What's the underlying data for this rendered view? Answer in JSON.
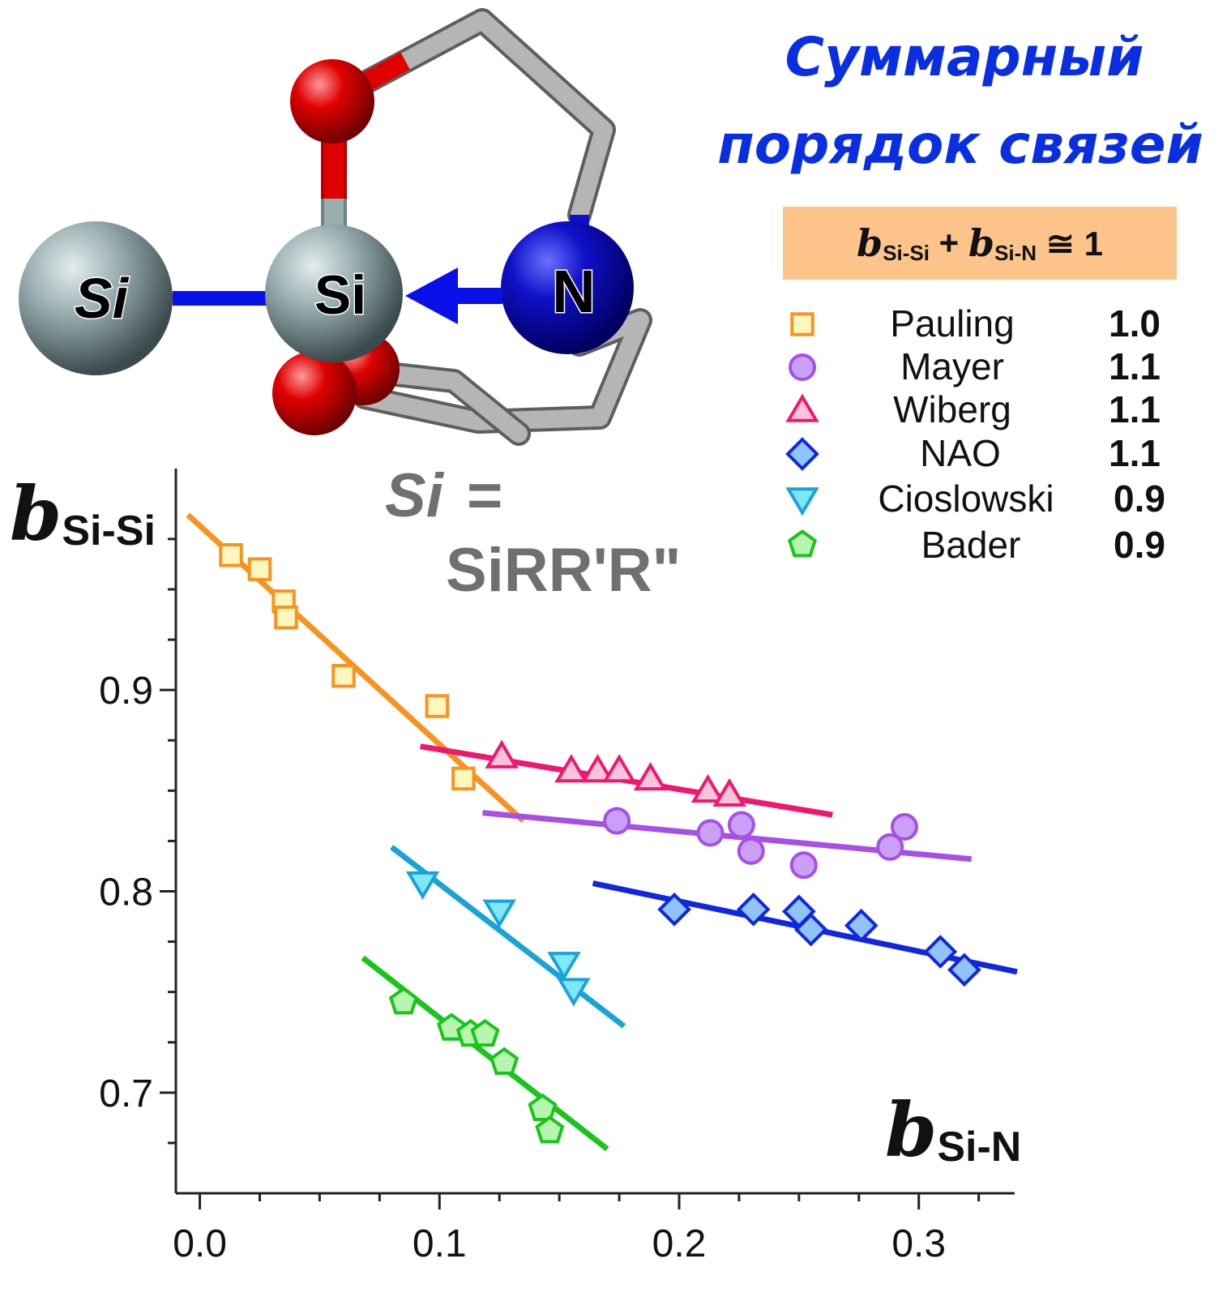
{
  "title": {
    "line1": "Суммарный",
    "line2": "порядок связей"
  },
  "formula": {
    "b1": "b",
    "sub1": "Si-Si",
    "plus": " + ",
    "b2": "b",
    "sub2": "Si-N",
    "rest": " ≅ 1"
  },
  "molecule": {
    "atom_left": "Si",
    "atom_center": "Si",
    "atom_right": "N",
    "colors": {
      "silicon": "#8fa3a6",
      "oxygen": "#e00000",
      "nitrogen": "#0a10c8",
      "carbon": "#a9a9a9",
      "bond_arrow": "#0a10e8"
    }
  },
  "si_definition": {
    "symbol": "Si",
    "equals": "=",
    "formula": "SiRR'R\""
  },
  "legend": [
    {
      "name": "Pauling",
      "value": "1.0",
      "marker": "square",
      "stroke": "#f7931e",
      "fill": "#fff6c0"
    },
    {
      "name": "Mayer",
      "value": "1.1",
      "marker": "circle",
      "stroke": "#a84fe6",
      "fill": "#c9a0f5"
    },
    {
      "name": "Wiberg",
      "value": "1.1",
      "marker": "triangle-up",
      "stroke": "#f0186e",
      "fill": "#f9c3dc"
    },
    {
      "name": "NAO",
      "value": "1.1",
      "marker": "diamond",
      "stroke": "#1026e0",
      "fill": "#8fc4f5"
    },
    {
      "name": "Cioslowski",
      "value": "0.9",
      "marker": "triangle-down",
      "stroke": "#1aa3d8",
      "fill": "#80e8f5"
    },
    {
      "name": "Bader",
      "value": "0.9",
      "marker": "pentagon",
      "stroke": "#1ac41a",
      "fill": "#b8f5b0"
    }
  ],
  "chart_data": {
    "type": "scatter",
    "xlabel_symbol": "b",
    "xlabel_sub": "Si-N",
    "ylabel_symbol": "b",
    "ylabel_sub": "Si-Si",
    "xlim": [
      -0.01,
      0.34
    ],
    "ylim": [
      0.65,
      1.01
    ],
    "x_ticks": [
      "0.0",
      "0.1",
      "0.2",
      "0.3"
    ],
    "x_tick_values": [
      0.0,
      0.1,
      0.2,
      0.3
    ],
    "y_ticks": [
      "0.7",
      "0.8",
      "0.9"
    ],
    "y_tick_values": [
      0.7,
      0.8,
      0.9
    ],
    "series": [
      {
        "name": "Pauling",
        "marker": "square",
        "stroke": "#f7931e",
        "fill": "#fff6c0",
        "points": [
          [
            0.013,
            0.967
          ],
          [
            0.025,
            0.96
          ],
          [
            0.035,
            0.944
          ],
          [
            0.036,
            0.936
          ],
          [
            0.06,
            0.907
          ],
          [
            0.099,
            0.892
          ],
          [
            0.11,
            0.856
          ]
        ],
        "fit": [
          [
            -0.005,
            0.987
          ],
          [
            0.135,
            0.835
          ]
        ]
      },
      {
        "name": "Wiberg",
        "marker": "triangle-up",
        "stroke": "#f0186e",
        "fill": "#f9c3dc",
        "points": [
          [
            0.126,
            0.867
          ],
          [
            0.155,
            0.86
          ],
          [
            0.166,
            0.86
          ],
          [
            0.175,
            0.86
          ],
          [
            0.188,
            0.856
          ],
          [
            0.212,
            0.85
          ],
          [
            0.221,
            0.848
          ]
        ],
        "fit": [
          [
            0.092,
            0.872
          ],
          [
            0.264,
            0.838
          ]
        ]
      },
      {
        "name": "Mayer",
        "marker": "circle",
        "stroke": "#a84fe6",
        "fill": "#c9a0f5",
        "points": [
          [
            0.174,
            0.835
          ],
          [
            0.213,
            0.829
          ],
          [
            0.226,
            0.833
          ],
          [
            0.23,
            0.82
          ],
          [
            0.252,
            0.813
          ],
          [
            0.288,
            0.822
          ],
          [
            0.294,
            0.832
          ]
        ],
        "fit": [
          [
            0.118,
            0.839
          ],
          [
            0.322,
            0.816
          ]
        ]
      },
      {
        "name": "NAO",
        "marker": "diamond",
        "stroke": "#1026e0",
        "fill": "#8fc4f5",
        "points": [
          [
            0.198,
            0.791
          ],
          [
            0.231,
            0.791
          ],
          [
            0.25,
            0.79
          ],
          [
            0.255,
            0.781
          ],
          [
            0.276,
            0.783
          ],
          [
            0.309,
            0.77
          ],
          [
            0.319,
            0.761
          ]
        ],
        "fit": [
          [
            0.164,
            0.804
          ],
          [
            0.341,
            0.76
          ]
        ]
      },
      {
        "name": "Cioslowski",
        "marker": "triangle-down",
        "stroke": "#1aa3d8",
        "fill": "#80e8f5",
        "points": [
          [
            0.093,
            0.804
          ],
          [
            0.125,
            0.79
          ],
          [
            0.152,
            0.764
          ],
          [
            0.156,
            0.751
          ]
        ],
        "fit": [
          [
            0.08,
            0.822
          ],
          [
            0.177,
            0.733
          ]
        ]
      },
      {
        "name": "Bader",
        "marker": "pentagon",
        "stroke": "#1ac41a",
        "fill": "#b8f5b0",
        "points": [
          [
            0.085,
            0.745
          ],
          [
            0.105,
            0.732
          ],
          [
            0.113,
            0.729
          ],
          [
            0.119,
            0.729
          ],
          [
            0.127,
            0.715
          ],
          [
            0.143,
            0.692
          ],
          [
            0.146,
            0.681
          ]
        ],
        "fit": [
          [
            0.068,
            0.767
          ],
          [
            0.17,
            0.672
          ]
        ]
      }
    ]
  }
}
